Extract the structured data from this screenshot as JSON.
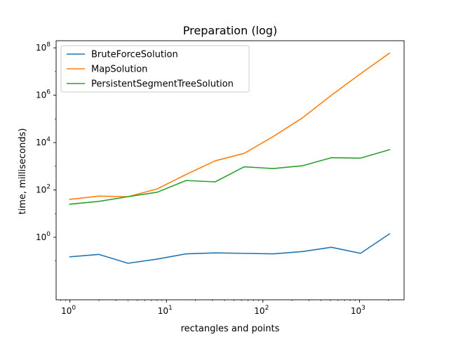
{
  "chart_data": {
    "type": "line",
    "title": "Preparation (log)",
    "xlabel": "rectangles and points",
    "ylabel": "time, milliseconds)",
    "x_scale": "log",
    "y_scale": "log",
    "xlim": [
      0.72,
      2900
    ],
    "ylim": [
      0.0023,
      200000000
    ],
    "x_ticks": [
      1,
      10,
      100,
      1000
    ],
    "x_tick_labels": [
      {
        "base": "10",
        "exp": "0"
      },
      {
        "base": "10",
        "exp": "1"
      },
      {
        "base": "10",
        "exp": "2"
      },
      {
        "base": "10",
        "exp": "3"
      }
    ],
    "y_ticks": [
      1,
      100,
      10000,
      1000000,
      100000000
    ],
    "y_tick_labels": [
      {
        "base": "10",
        "exp": "0"
      },
      {
        "base": "10",
        "exp": "2"
      },
      {
        "base": "10",
        "exp": "4"
      },
      {
        "base": "10",
        "exp": "6"
      },
      {
        "base": "10",
        "exp": "8"
      }
    ],
    "grid": false,
    "legend_position": "top-left",
    "x": [
      1,
      2,
      4,
      8,
      16,
      32,
      64,
      128,
      256,
      512,
      1024,
      2048
    ],
    "series": [
      {
        "name": "BruteForceSolution",
        "color": "#1f77b4",
        "values": [
          0.15,
          0.19,
          0.08,
          0.12,
          0.2,
          0.22,
          0.21,
          0.2,
          0.25,
          0.38,
          0.21,
          1.4
        ]
      },
      {
        "name": "MapSolution",
        "color": "#ff7f0e",
        "values": [
          40,
          55,
          52,
          110,
          450,
          1700,
          3500,
          18000,
          110000,
          1000000,
          8000000,
          60000000
        ]
      },
      {
        "name": "PersistentSegmentTreeSolution",
        "color": "#2ca02c",
        "values": [
          25,
          33,
          52,
          80,
          250,
          220,
          950,
          800,
          1050,
          2300,
          2200,
          5000
        ]
      }
    ]
  }
}
